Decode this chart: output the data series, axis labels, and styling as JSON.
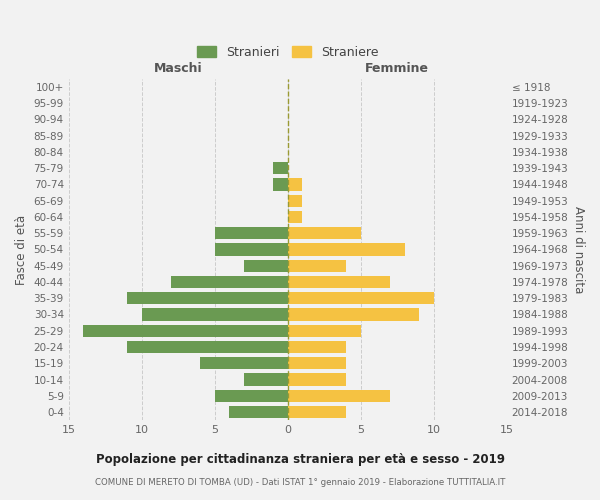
{
  "age_groups": [
    "100+",
    "95-99",
    "90-94",
    "85-89",
    "80-84",
    "75-79",
    "70-74",
    "65-69",
    "60-64",
    "55-59",
    "50-54",
    "45-49",
    "40-44",
    "35-39",
    "30-34",
    "25-29",
    "20-24",
    "15-19",
    "10-14",
    "5-9",
    "0-4"
  ],
  "birth_years": [
    "≤ 1918",
    "1919-1923",
    "1924-1928",
    "1929-1933",
    "1934-1938",
    "1939-1943",
    "1944-1948",
    "1949-1953",
    "1954-1958",
    "1959-1963",
    "1964-1968",
    "1969-1973",
    "1974-1978",
    "1979-1983",
    "1984-1988",
    "1989-1993",
    "1994-1998",
    "1999-2003",
    "2004-2008",
    "2009-2013",
    "2014-2018"
  ],
  "maschi": [
    0,
    0,
    0,
    0,
    0,
    1,
    1,
    0,
    0,
    5,
    5,
    3,
    8,
    11,
    10,
    14,
    11,
    6,
    3,
    5,
    4
  ],
  "femmine": [
    0,
    0,
    0,
    0,
    0,
    0,
    1,
    1,
    1,
    5,
    8,
    4,
    7,
    10,
    9,
    5,
    4,
    4,
    4,
    7,
    4
  ],
  "male_color": "#6a9a52",
  "female_color": "#f5c242",
  "bg_color": "#f2f2f2",
  "grid_color": "#cccccc",
  "dashed_line_color": "#9a9a33",
  "title": "Popolazione per cittadinanza straniera per età e sesso - 2019",
  "subtitle": "COMUNE DI MERETO DI TOMBA (UD) - Dati ISTAT 1° gennaio 2019 - Elaborazione TUTTITALIA.IT",
  "xlabel_maschi": "Maschi",
  "xlabel_femmine": "Femmine",
  "ylabel_left": "Fasce di età",
  "ylabel_right": "Anni di nascita",
  "legend_male": "Stranieri",
  "legend_female": "Straniere",
  "xlim": 15,
  "bar_height": 0.75
}
